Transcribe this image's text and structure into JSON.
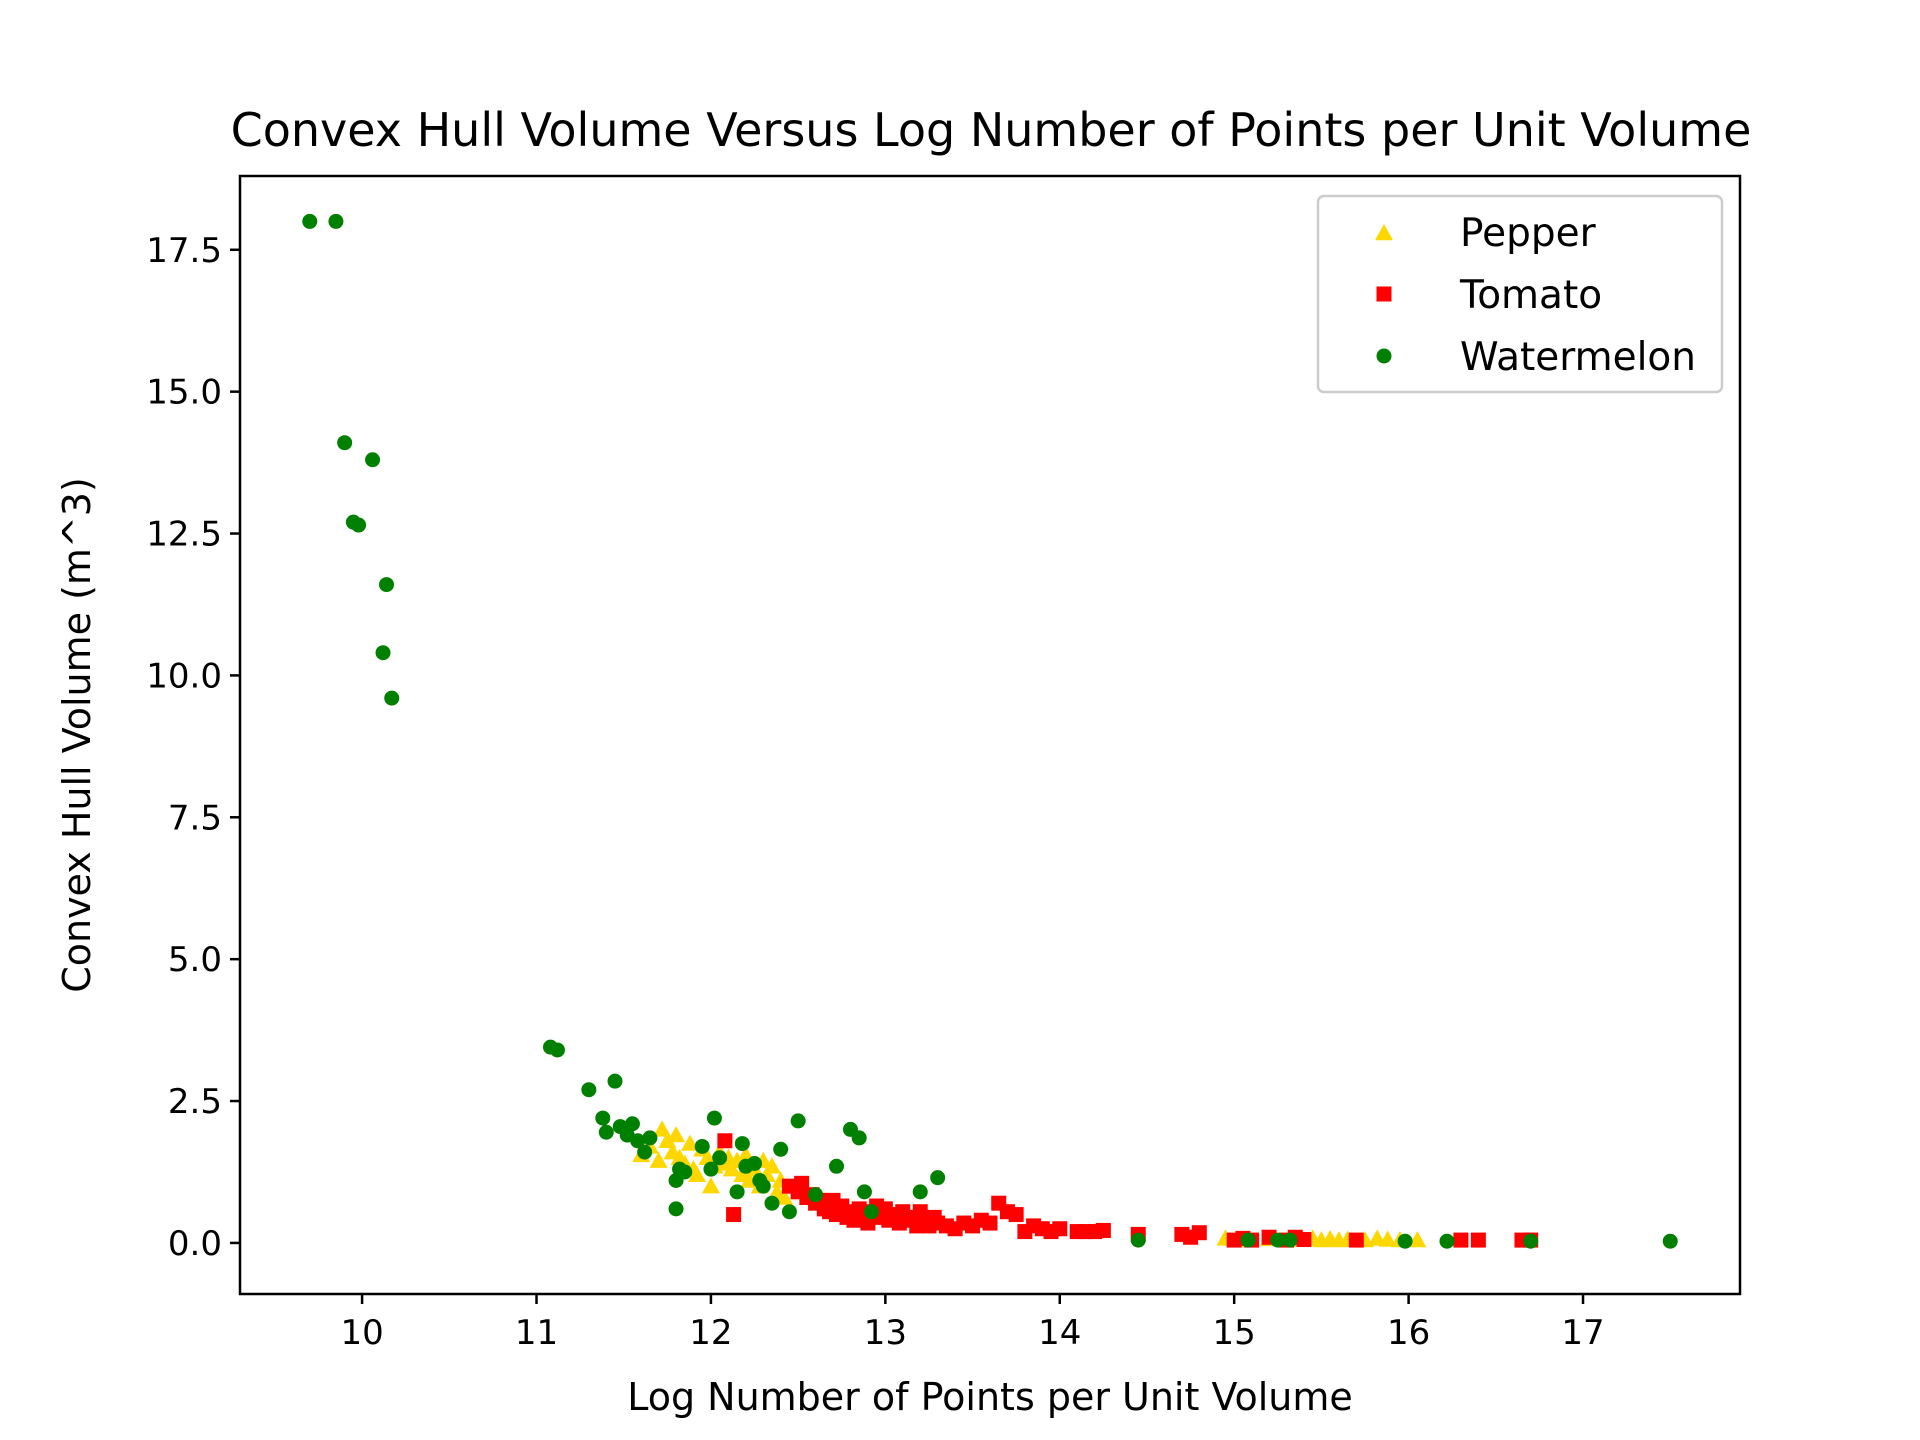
{
  "chart_data": {
    "type": "scatter",
    "title": "Convex Hull Volume Versus Log Number of Points per Unit Volume",
    "xlabel": "Log Number of Points per Unit Volume",
    "ylabel": "Convex Hull Volume (m^3)",
    "xlim": [
      9.3,
      17.9
    ],
    "ylim": [
      -0.9,
      18.8
    ],
    "xticks": [
      10,
      11,
      12,
      13,
      14,
      15,
      16,
      17
    ],
    "yticks": [
      0.0,
      2.5,
      5.0,
      7.5,
      10.0,
      12.5,
      15.0,
      17.5
    ],
    "xtick_labels": [
      "10",
      "11",
      "12",
      "13",
      "14",
      "15",
      "16",
      "17"
    ],
    "ytick_labels": [
      "0.0",
      "2.5",
      "5.0",
      "7.5",
      "10.0",
      "12.5",
      "15.0",
      "17.5"
    ],
    "grid": false,
    "legend_position": "top-right",
    "series": [
      {
        "name": "Pepper",
        "marker": "triangle",
        "color": "#ffd700",
        "points": [
          [
            11.6,
            1.55
          ],
          [
            11.65,
            1.7
          ],
          [
            11.7,
            1.45
          ],
          [
            11.72,
            2.0
          ],
          [
            11.75,
            1.8
          ],
          [
            11.78,
            1.6
          ],
          [
            11.8,
            1.9
          ],
          [
            11.82,
            1.5
          ],
          [
            11.85,
            1.4
          ],
          [
            11.88,
            1.75
          ],
          [
            11.9,
            1.3
          ],
          [
            11.92,
            1.2
          ],
          [
            11.95,
            1.65
          ],
          [
            11.98,
            1.5
          ],
          [
            12.0,
            1.0
          ],
          [
            12.02,
            1.35
          ],
          [
            12.05,
            1.6
          ],
          [
            12.08,
            1.4
          ],
          [
            12.1,
            1.5
          ],
          [
            12.12,
            1.3
          ],
          [
            12.15,
            1.45
          ],
          [
            12.18,
            1.2
          ],
          [
            12.2,
            1.55
          ],
          [
            12.22,
            1.1
          ],
          [
            12.25,
            1.3
          ],
          [
            12.28,
            1.0
          ],
          [
            12.3,
            1.45
          ],
          [
            12.32,
            1.2
          ],
          [
            12.35,
            1.35
          ],
          [
            12.38,
            0.9
          ],
          [
            12.4,
            1.1
          ],
          [
            12.42,
            0.8
          ],
          [
            14.95,
            0.08
          ],
          [
            15.05,
            0.05
          ],
          [
            15.2,
            0.07
          ],
          [
            15.35,
            0.06
          ],
          [
            15.45,
            0.08
          ],
          [
            15.5,
            0.05
          ],
          [
            15.55,
            0.07
          ],
          [
            15.6,
            0.05
          ],
          [
            15.65,
            0.06
          ],
          [
            15.75,
            0.05
          ],
          [
            15.82,
            0.08
          ],
          [
            15.88,
            0.06
          ],
          [
            15.95,
            0.05
          ],
          [
            16.05,
            0.05
          ]
        ]
      },
      {
        "name": "Tomato",
        "marker": "square",
        "color": "#ff0000",
        "points": [
          [
            12.08,
            1.8
          ],
          [
            12.13,
            0.5
          ],
          [
            12.45,
            1.0
          ],
          [
            12.5,
            0.9
          ],
          [
            12.52,
            1.05
          ],
          [
            12.55,
            0.8
          ],
          [
            12.58,
            0.85
          ],
          [
            12.6,
            0.7
          ],
          [
            12.62,
            0.75
          ],
          [
            12.65,
            0.6
          ],
          [
            12.68,
            0.55
          ],
          [
            12.7,
            0.75
          ],
          [
            12.72,
            0.5
          ],
          [
            12.75,
            0.65
          ],
          [
            12.78,
            0.45
          ],
          [
            12.8,
            0.55
          ],
          [
            12.82,
            0.4
          ],
          [
            12.85,
            0.6
          ],
          [
            12.88,
            0.45
          ],
          [
            12.9,
            0.35
          ],
          [
            12.92,
            0.55
          ],
          [
            12.95,
            0.65
          ],
          [
            12.98,
            0.45
          ],
          [
            13.0,
            0.6
          ],
          [
            13.02,
            0.4
          ],
          [
            13.05,
            0.5
          ],
          [
            13.08,
            0.35
          ],
          [
            13.1,
            0.55
          ],
          [
            13.12,
            0.45
          ],
          [
            13.15,
            0.4
          ],
          [
            13.18,
            0.3
          ],
          [
            13.2,
            0.55
          ],
          [
            13.22,
            0.4
          ],
          [
            13.25,
            0.3
          ],
          [
            13.28,
            0.45
          ],
          [
            13.3,
            0.35
          ],
          [
            13.35,
            0.3
          ],
          [
            13.4,
            0.25
          ],
          [
            13.45,
            0.35
          ],
          [
            13.5,
            0.3
          ],
          [
            13.55,
            0.4
          ],
          [
            13.6,
            0.35
          ],
          [
            13.65,
            0.7
          ],
          [
            13.7,
            0.55
          ],
          [
            13.75,
            0.5
          ],
          [
            13.8,
            0.2
          ],
          [
            13.85,
            0.3
          ],
          [
            13.9,
            0.25
          ],
          [
            13.95,
            0.2
          ],
          [
            14.0,
            0.25
          ],
          [
            14.1,
            0.2
          ],
          [
            14.15,
            0.2
          ],
          [
            14.2,
            0.2
          ],
          [
            14.25,
            0.22
          ],
          [
            14.45,
            0.15
          ],
          [
            14.7,
            0.15
          ],
          [
            14.75,
            0.1
          ],
          [
            14.8,
            0.18
          ],
          [
            15.0,
            0.05
          ],
          [
            15.05,
            0.08
          ],
          [
            15.1,
            0.05
          ],
          [
            15.2,
            0.1
          ],
          [
            15.3,
            0.05
          ],
          [
            15.35,
            0.1
          ],
          [
            15.4,
            0.06
          ],
          [
            15.7,
            0.05
          ],
          [
            16.3,
            0.05
          ],
          [
            16.4,
            0.05
          ],
          [
            16.65,
            0.05
          ],
          [
            16.7,
            0.05
          ]
        ]
      },
      {
        "name": "Watermelon",
        "marker": "circle",
        "color": "#008000",
        "points": [
          [
            9.7,
            18.0
          ],
          [
            9.85,
            18.0
          ],
          [
            9.9,
            14.1
          ],
          [
            9.95,
            12.7
          ],
          [
            9.98,
            12.65
          ],
          [
            10.06,
            13.8
          ],
          [
            10.12,
            10.4
          ],
          [
            10.14,
            11.6
          ],
          [
            10.17,
            9.6
          ],
          [
            11.08,
            3.45
          ],
          [
            11.12,
            3.4
          ],
          [
            11.3,
            2.7
          ],
          [
            11.38,
            2.2
          ],
          [
            11.4,
            1.95
          ],
          [
            11.45,
            2.85
          ],
          [
            11.48,
            2.05
          ],
          [
            11.52,
            1.9
          ],
          [
            11.55,
            2.1
          ],
          [
            11.58,
            1.8
          ],
          [
            11.62,
            1.6
          ],
          [
            11.65,
            1.85
          ],
          [
            11.8,
            0.6
          ],
          [
            11.8,
            1.1
          ],
          [
            11.82,
            1.3
          ],
          [
            11.85,
            1.25
          ],
          [
            11.95,
            1.7
          ],
          [
            12.0,
            1.3
          ],
          [
            12.02,
            2.2
          ],
          [
            12.05,
            1.5
          ],
          [
            12.15,
            0.9
          ],
          [
            12.18,
            1.75
          ],
          [
            12.2,
            1.35
          ],
          [
            12.25,
            1.4
          ],
          [
            12.28,
            1.1
          ],
          [
            12.3,
            1.0
          ],
          [
            12.35,
            0.7
          ],
          [
            12.4,
            1.65
          ],
          [
            12.45,
            0.55
          ],
          [
            12.5,
            2.15
          ],
          [
            12.6,
            0.85
          ],
          [
            12.72,
            1.35
          ],
          [
            12.8,
            2.0
          ],
          [
            12.85,
            1.85
          ],
          [
            12.88,
            0.9
          ],
          [
            12.92,
            0.55
          ],
          [
            13.2,
            0.9
          ],
          [
            13.3,
            1.15
          ],
          [
            14.45,
            0.05
          ],
          [
            15.08,
            0.05
          ],
          [
            15.25,
            0.05
          ],
          [
            15.32,
            0.05
          ],
          [
            15.98,
            0.03
          ],
          [
            16.22,
            0.03
          ],
          [
            16.7,
            0.03
          ],
          [
            17.5,
            0.03
          ]
        ]
      }
    ]
  }
}
